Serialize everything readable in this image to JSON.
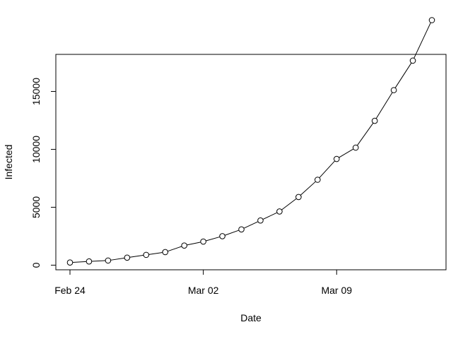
{
  "chart_data": {
    "type": "line",
    "title": "",
    "xlabel": "Date",
    "ylabel": "Infected",
    "x": [
      "2020-02-24",
      "2020-02-25",
      "2020-02-26",
      "2020-02-27",
      "2020-02-28",
      "2020-02-29",
      "2020-03-01",
      "2020-03-02",
      "2020-03-03",
      "2020-03-04",
      "2020-03-05",
      "2020-03-06",
      "2020-03-07",
      "2020-03-08",
      "2020-03-09",
      "2020-03-10",
      "2020-03-11",
      "2020-03-12",
      "2020-03-13",
      "2020-03-14"
    ],
    "series": [
      {
        "values": [
          229,
          322,
          400,
          650,
          888,
          1128,
          1694,
          2036,
          2502,
          3089,
          3858,
          4636,
          5883,
          7375,
          9172,
          10149,
          12462,
          15113,
          17660,
          21157
        ]
      }
    ],
    "xticks": [
      {
        "value": "2020-02-24",
        "label": "Feb 24"
      },
      {
        "value": "2020-03-02",
        "label": "Mar 02"
      },
      {
        "value": "2020-03-09",
        "label": "Mar 09"
      }
    ],
    "yticks": [
      0,
      5000,
      10000,
      15000
    ],
    "ylim": [
      -400,
      18200
    ],
    "xlim": [
      "2020-02-24",
      "2020-03-14"
    ],
    "grid": false,
    "marker": "open-circle",
    "line_color": "#000000"
  }
}
